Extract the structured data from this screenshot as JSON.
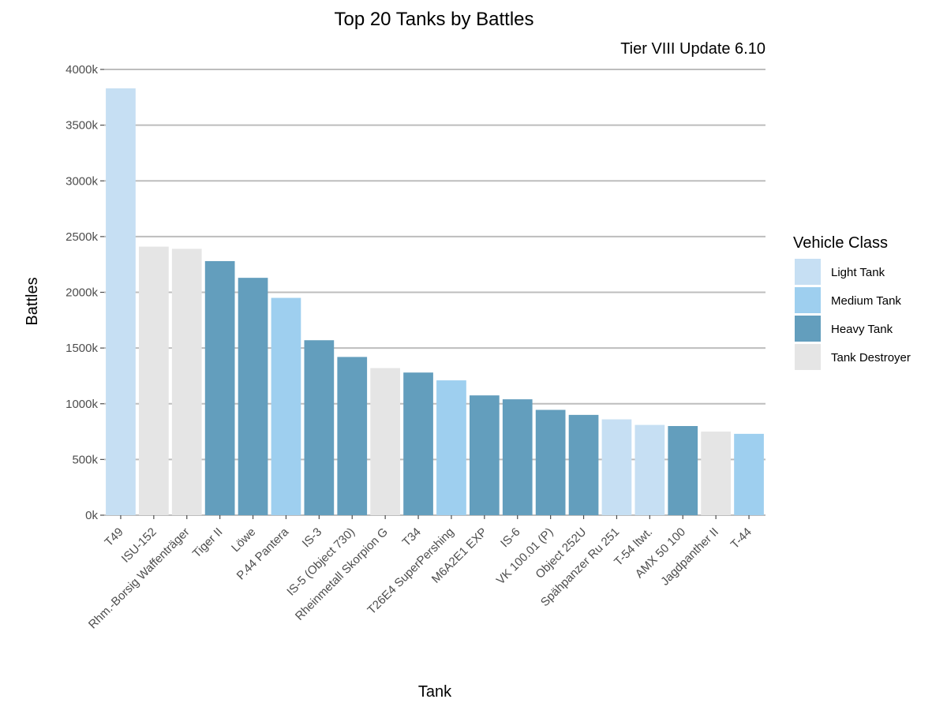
{
  "chart_data": {
    "type": "bar",
    "title": "Top 20 Tanks by Battles",
    "subtitle": "Tier VIII Update 6.10",
    "xlabel": "Tank",
    "ylabel": "Battles",
    "ylim": [
      0,
      4000000
    ],
    "yticks": [
      0,
      500000,
      1000000,
      1500000,
      2000000,
      2500000,
      3000000,
      3500000,
      4000000
    ],
    "ytick_labels": [
      "0k",
      "500k",
      "1000k",
      "1500k",
      "2000k",
      "2500k",
      "3000k",
      "3500k",
      "4000k"
    ],
    "grid": true,
    "legend_position": "right",
    "legend_title": "Vehicle Class",
    "classes": [
      {
        "name": "Light Tank",
        "color": "#c6dff3"
      },
      {
        "name": "Medium Tank",
        "color": "#9ecfef"
      },
      {
        "name": "Heavy Tank",
        "color": "#639ebd"
      },
      {
        "name": "Tank Destroyer",
        "color": "#e5e5e5"
      }
    ],
    "bars": [
      {
        "tank": "T49",
        "value": 3830000,
        "class": "Light Tank"
      },
      {
        "tank": "ISU-152",
        "value": 2410000,
        "class": "Tank Destroyer"
      },
      {
        "tank": "Rhm.-Borsig Waffenträger",
        "value": 2390000,
        "class": "Tank Destroyer"
      },
      {
        "tank": "Tiger II",
        "value": 2280000,
        "class": "Heavy Tank"
      },
      {
        "tank": "Löwe",
        "value": 2130000,
        "class": "Heavy Tank"
      },
      {
        "tank": "P.44 Pantera",
        "value": 1950000,
        "class": "Medium Tank"
      },
      {
        "tank": "IS-3",
        "value": 1570000,
        "class": "Heavy Tank"
      },
      {
        "tank": "IS-5 (Object 730)",
        "value": 1420000,
        "class": "Heavy Tank"
      },
      {
        "tank": "Rheinmetall Skorpion G",
        "value": 1320000,
        "class": "Tank Destroyer"
      },
      {
        "tank": "T34",
        "value": 1280000,
        "class": "Heavy Tank"
      },
      {
        "tank": "T26E4 SuperPershing",
        "value": 1210000,
        "class": "Medium Tank"
      },
      {
        "tank": "M6A2E1 EXP",
        "value": 1075000,
        "class": "Heavy Tank"
      },
      {
        "tank": "IS-6",
        "value": 1040000,
        "class": "Heavy Tank"
      },
      {
        "tank": "VK 100.01 (P)",
        "value": 945000,
        "class": "Heavy Tank"
      },
      {
        "tank": "Object 252U",
        "value": 900000,
        "class": "Heavy Tank"
      },
      {
        "tank": "Spähpanzer Ru 251",
        "value": 860000,
        "class": "Light Tank"
      },
      {
        "tank": "T-54 ltwt.",
        "value": 810000,
        "class": "Light Tank"
      },
      {
        "tank": "AMX 50 100",
        "value": 800000,
        "class": "Heavy Tank"
      },
      {
        "tank": "Jagdpanther II",
        "value": 750000,
        "class": "Tank Destroyer"
      },
      {
        "tank": "T-44",
        "value": 730000,
        "class": "Medium Tank"
      }
    ]
  }
}
